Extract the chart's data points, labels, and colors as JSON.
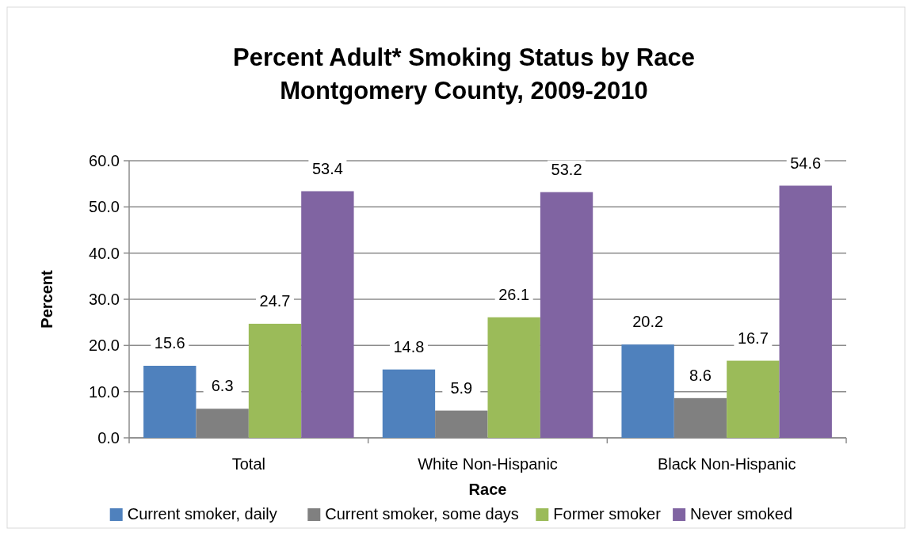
{
  "chart_data": {
    "type": "bar",
    "title": "Percent Adult* Smoking Status by Race\nMontgomery County, 2009-2010",
    "xlabel": "Race",
    "ylabel": "Percent",
    "categories": [
      "Total",
      "White Non-Hispanic",
      "Black Non-Hispanic"
    ],
    "series": [
      {
        "name": "Current smoker, daily",
        "color": "#4f81bd",
        "values": [
          15.6,
          14.8,
          20.2
        ]
      },
      {
        "name": "Current smoker, some days",
        "color": "#808080",
        "values": [
          6.3,
          5.9,
          8.6
        ]
      },
      {
        "name": "Former smoker",
        "color": "#9bbb59",
        "values": [
          24.7,
          26.1,
          16.7
        ]
      },
      {
        "name": "Never smoked",
        "color": "#8064a2",
        "values": [
          53.4,
          53.2,
          54.6
        ]
      }
    ],
    "ylim": [
      0,
      60
    ],
    "yticks": [
      {
        "value": 0,
        "label": "0.0"
      },
      {
        "value": 10,
        "label": "10.0"
      },
      {
        "value": 20,
        "label": "20.0"
      },
      {
        "value": 30,
        "label": "30.0"
      },
      {
        "value": 40,
        "label": "40.0"
      },
      {
        "value": 50,
        "label": "50.0"
      },
      {
        "value": 60,
        "label": "60.0"
      }
    ],
    "grid": "y",
    "legend": "bottom",
    "data_labels": true
  }
}
